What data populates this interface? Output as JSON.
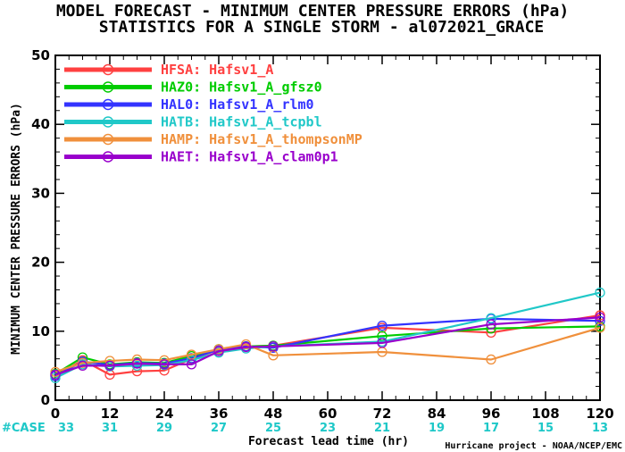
{
  "title_line1": "MODEL FORECAST - MINIMUM CENTER PRESSURE ERRORS (hPa)",
  "title_line2": "STATISTICS FOR A SINGLE STORM - al072021_GRACE",
  "credit": "Hurricane project - NOAA/NCEP/EMC",
  "case_label": "#CASE",
  "chart_data": {
    "type": "line",
    "title": "MODEL FORECAST - MINIMUM CENTER PRESSURE ERRORS (hPa)",
    "subtitle": "STATISTICS FOR A SINGLE STORM - al072021_GRACE",
    "xlabel": "Forecast lead time (hr)",
    "ylabel": "MINIMUM CENTER PRESSURE ERRORS (hPa)",
    "xlim": [
      0,
      120
    ],
    "ylim": [
      0,
      50
    ],
    "xticks": [
      0,
      12,
      24,
      36,
      48,
      60,
      72,
      84,
      96,
      108,
      120
    ],
    "yticks": [
      0,
      10,
      20,
      30,
      40,
      50
    ],
    "grid": false,
    "legend_position": "top-left",
    "case_counts": {
      "hours": [
        0,
        12,
        24,
        36,
        48,
        60,
        72,
        84,
        96,
        108,
        120
      ],
      "counts": [
        "33",
        "31",
        "29",
        "27",
        "25",
        "23",
        "21",
        "19",
        "17",
        "15",
        "13"
      ]
    },
    "series": [
      {
        "name": "HFSA: Hafsv1_A",
        "color": "#ff4040",
        "x": [
          0,
          6,
          12,
          18,
          24,
          30,
          36,
          42,
          48,
          72,
          96,
          120
        ],
        "y": [
          3.5,
          5.8,
          3.7,
          4.2,
          4.3,
          6.0,
          7.3,
          7.8,
          7.9,
          10.5,
          9.8,
          12.3
        ]
      },
      {
        "name": "HAZ0: Hafsv1_A_gfsz0",
        "color": "#00cc00",
        "x": [
          0,
          6,
          12,
          18,
          24,
          30,
          36,
          42,
          48,
          72,
          96,
          120
        ],
        "y": [
          3.8,
          6.2,
          5.2,
          5.5,
          5.4,
          6.4,
          7.4,
          7.8,
          7.9,
          9.3,
          10.4,
          10.7
        ]
      },
      {
        "name": "HAL0: Hafsv1_A_rlm0",
        "color": "#3333ff",
        "x": [
          0,
          6,
          12,
          18,
          24,
          30,
          36,
          42,
          48,
          72,
          96,
          120
        ],
        "y": [
          3.5,
          5.6,
          5.1,
          5.4,
          5.3,
          6.1,
          7.3,
          7.8,
          7.6,
          10.8,
          11.8,
          11.5
        ]
      },
      {
        "name": "HATB: Hafsv1_A_tcpbl",
        "color": "#20c8c8",
        "x": [
          0,
          6,
          12,
          18,
          24,
          30,
          36,
          42,
          48,
          72,
          96,
          120
        ],
        "y": [
          3.2,
          5.2,
          4.9,
          5.0,
          5.1,
          5.8,
          6.9,
          7.5,
          7.8,
          8.5,
          11.9,
          15.6
        ]
      },
      {
        "name": "HAMP: Hafsv1_A_thompsonMP",
        "color": "#f0903c",
        "x": [
          0,
          6,
          12,
          18,
          24,
          30,
          36,
          42,
          48,
          72,
          96,
          120
        ],
        "y": [
          4.1,
          5.4,
          5.7,
          5.9,
          5.8,
          6.6,
          7.4,
          8.1,
          6.5,
          7.0,
          5.9,
          10.5
        ]
      },
      {
        "name": "HAET: Hafsv1_A_clam0p1",
        "color": "#9900cc",
        "x": [
          0,
          6,
          12,
          18,
          24,
          30,
          36,
          42,
          48,
          72,
          96,
          120
        ],
        "y": [
          3.7,
          5.0,
          5.0,
          5.3,
          5.2,
          5.2,
          7.1,
          7.7,
          7.8,
          8.3,
          11.0,
          12.0
        ]
      }
    ]
  }
}
